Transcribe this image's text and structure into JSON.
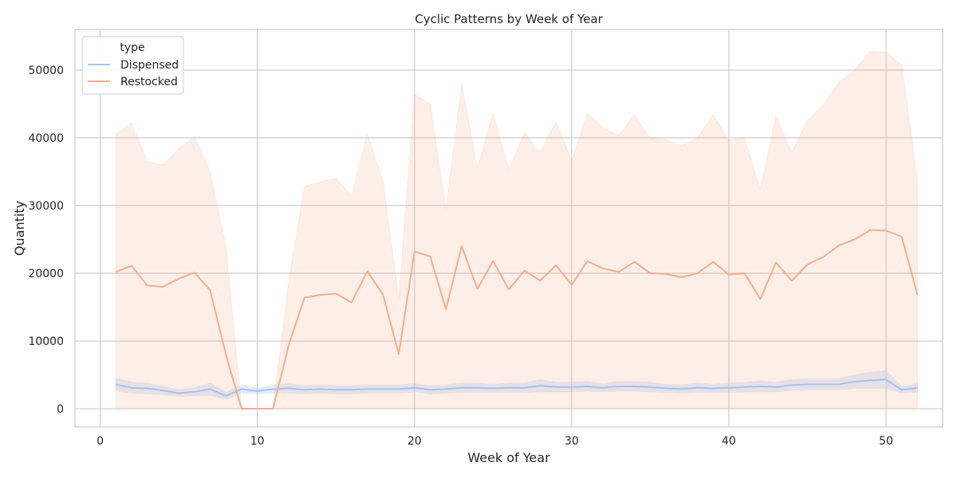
{
  "chart_data": {
    "type": "line",
    "title": "Cyclic Patterns by Week of Year",
    "xlabel": "Week of Year",
    "ylabel": "Quantity",
    "xlim": [
      -1.6,
      53.6
    ],
    "ylim": [
      -2700,
      56000
    ],
    "xticks": [
      0,
      10,
      20,
      30,
      40,
      50
    ],
    "yticks": [
      0,
      10000,
      20000,
      30000,
      40000,
      50000
    ],
    "grid": true,
    "legend": {
      "title": "type",
      "placement": "top-left"
    },
    "x": [
      1,
      2,
      3,
      4,
      5,
      6,
      7,
      8,
      9,
      10,
      11,
      12,
      13,
      14,
      15,
      16,
      17,
      18,
      19,
      20,
      21,
      22,
      23,
      24,
      25,
      26,
      27,
      28,
      29,
      30,
      31,
      32,
      33,
      34,
      35,
      36,
      37,
      38,
      39,
      40,
      41,
      42,
      43,
      44,
      45,
      46,
      47,
      48,
      49,
      50,
      51,
      52
    ],
    "series": [
      {
        "name": "Dispensed",
        "color": "#a4c2f4",
        "values": [
          3600,
          3100,
          3000,
          2700,
          2300,
          2500,
          2900,
          1900,
          2900,
          2600,
          2900,
          3000,
          2800,
          2900,
          2800,
          2800,
          2900,
          2900,
          2900,
          3100,
          2800,
          2900,
          3100,
          3100,
          3000,
          3100,
          3100,
          3400,
          3200,
          3200,
          3300,
          3100,
          3300,
          3300,
          3200,
          3000,
          2900,
          3100,
          3000,
          3100,
          3200,
          3300,
          3200,
          3500,
          3600,
          3600,
          3600,
          4000,
          4200,
          4300,
          2800,
          3100
        ],
        "ci_lower": [
          2700,
          2300,
          2200,
          2100,
          1800,
          1900,
          2000,
          1400,
          2300,
          2200,
          2300,
          2300,
          2200,
          2300,
          2200,
          2200,
          2300,
          2300,
          2300,
          2500,
          2200,
          2300,
          2400,
          2400,
          2400,
          2400,
          2400,
          2500,
          2500,
          2500,
          2600,
          2500,
          2600,
          2600,
          2500,
          2400,
          2300,
          2400,
          2400,
          2400,
          2500,
          2500,
          2500,
          2700,
          2800,
          2800,
          2800,
          3000,
          3000,
          3000,
          2300,
          2500
        ],
        "ci_upper": [
          4500,
          3900,
          3800,
          3300,
          2800,
          3100,
          3800,
          2400,
          3500,
          3000,
          3500,
          3700,
          3400,
          3500,
          3400,
          3400,
          3500,
          3500,
          3500,
          3700,
          3400,
          3500,
          3800,
          3800,
          3600,
          3800,
          3800,
          4300,
          3900,
          3900,
          4000,
          3700,
          4000,
          4000,
          3900,
          3600,
          3500,
          3800,
          3600,
          3800,
          3900,
          4100,
          3900,
          4300,
          4400,
          4400,
          4400,
          5000,
          5400,
          5600,
          3300,
          3700
        ]
      },
      {
        "name": "Restocked",
        "color": "#f5ad8e",
        "values": [
          20200,
          21100,
          18200,
          18000,
          19200,
          20100,
          17500,
          8000,
          0,
          0,
          0,
          9400,
          16400,
          16800,
          17000,
          15700,
          20300,
          16800,
          8100,
          23200,
          22500,
          14700,
          24000,
          17700,
          21800,
          17600,
          20400,
          18900,
          21200,
          18300,
          21800,
          20700,
          20200,
          21700,
          20000,
          19900,
          19400,
          20000,
          21700,
          19800,
          20000,
          16200,
          21600,
          18900,
          21300,
          22400,
          24100,
          25000,
          26400,
          26300,
          25400,
          16800
        ],
        "ci_lower": [
          0,
          0,
          0,
          0,
          0,
          0,
          0,
          0,
          0,
          0,
          0,
          0,
          0,
          0,
          0,
          0,
          0,
          0,
          0,
          0,
          0,
          0,
          0,
          0,
          0,
          0,
          0,
          0,
          0,
          0,
          0,
          0,
          0,
          0,
          0,
          0,
          0,
          0,
          0,
          0,
          0,
          0,
          0,
          0,
          0,
          0,
          0,
          0,
          0,
          0,
          0,
          0
        ],
        "ci_upper": [
          40500,
          42200,
          36500,
          36000,
          38400,
          40200,
          35000,
          24000,
          0,
          0,
          0,
          18800,
          32800,
          33500,
          34000,
          31400,
          40600,
          33600,
          16200,
          46400,
          45000,
          29400,
          48000,
          35400,
          43600,
          35200,
          40800,
          37800,
          42400,
          36600,
          43600,
          41400,
          40400,
          43400,
          40000,
          39800,
          38800,
          40000,
          43400,
          39600,
          40000,
          32400,
          43200,
          37800,
          42600,
          44800,
          48200,
          50000,
          52800,
          52600,
          50800,
          33600
        ]
      }
    ]
  }
}
